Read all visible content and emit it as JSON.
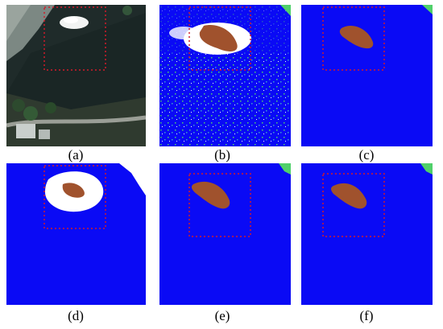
{
  "panels": [
    {
      "caption": "(a)",
      "content": "satellite-photo"
    },
    {
      "caption": "(b)",
      "content": "noisy-classification-map"
    },
    {
      "caption": "(c)",
      "content": "classification-map"
    },
    {
      "caption": "(d)",
      "content": "classification-map-with-white-halo"
    },
    {
      "caption": "(e)",
      "content": "classification-map"
    },
    {
      "caption": "(f)",
      "content": "classification-map"
    }
  ],
  "colors": {
    "water_blue": "#0a0af5",
    "land_white": "#ffffff",
    "island_brown": "#a0522d",
    "vegetation_green": "#4fd06a",
    "roi_dashed_red": "#d21a2a"
  }
}
